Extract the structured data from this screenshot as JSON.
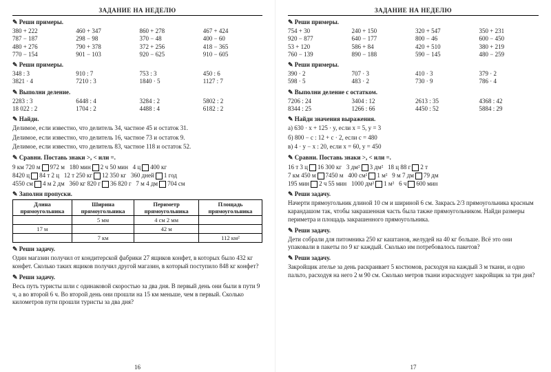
{
  "header": "ЗАДАНИЕ НА НЕДЕЛЮ",
  "left": {
    "page_no": "16",
    "s1_title": "Реши примеры.",
    "s1": {
      "c1": [
        "380 + 222",
        "787 − 187",
        "480 + 276",
        "770 − 154"
      ],
      "c2": [
        "460 + 347",
        "298 − 98",
        "790 + 378",
        "901 − 103"
      ],
      "c3": [
        "860 + 278",
        "370 − 48",
        "372 + 256",
        "920 − 625"
      ],
      "c4": [
        "467 + 424",
        "400 − 60",
        "418 − 365",
        "910 − 605"
      ]
    },
    "s2_title": "Реши примеры.",
    "s2": {
      "c1": [
        "348 : 3",
        "3821 · 4"
      ],
      "c2": [
        "910 : 7",
        "7210 : 3"
      ],
      "c3": [
        "753 : 3",
        "1840 · 5"
      ],
      "c4": [
        "450 : 6",
        "1127 : 7"
      ]
    },
    "s3_title": "Выполни деление.",
    "s3": {
      "c1": [
        "2283 : 3",
        "18 022 : 2"
      ],
      "c2": [
        "6448 : 4",
        "1704 : 2"
      ],
      "c3": [
        "3284 : 2",
        "4488 : 4"
      ],
      "c4": [
        "5802 : 2",
        "6182 : 2"
      ]
    },
    "s4_title": "Найди.",
    "s4_lines": [
      "Делимое, если известно, что делитель 34, частное 45 и остаток 31.",
      "Делимое, если известно, что делитель 16, частное 73 и остаток 9.",
      "Делимое, если известно, что делитель 83, частное 118 и остаток 52."
    ],
    "s5_title": "Сравни. Поставь знаки >, < или =.",
    "s5": {
      "r1": [
        "9 км 720 м",
        "972 м",
        "180 мин",
        "2 ч 50 мин",
        "4 ц",
        "400 кг"
      ],
      "r2": [
        "8420 ц",
        "84 т 2 ц",
        "12 т 250 кг",
        "12 350 кг",
        "360 дней",
        "1 год"
      ],
      "r3": [
        "4550 см",
        "4 м 2 дм",
        "360 кг 820 г",
        "36 820 г",
        "7 м 4 дм",
        "704 см"
      ]
    },
    "s6_title": "Заполни пропуски.",
    "table": {
      "headers": [
        "Длина прямоугольника",
        "Ширина прямоугольника",
        "Периметр прямоугольника",
        "Площадь прямоугольника"
      ],
      "rows": [
        [
          "",
          "5 мм",
          "4 см 2 мм",
          ""
        ],
        [
          "17 м",
          "",
          "42 м",
          ""
        ],
        [
          "",
          "7 км",
          "",
          "112 км²"
        ]
      ]
    },
    "s7_title": "Реши задачу.",
    "s7_text": "Один магазин получил от кондитерской фабрики 27 ящиков конфет, в которых было 432 кг конфет. Сколько таких ящиков получил другой магазин, в который поступило 848 кг конфет?",
    "s8_title": "Реши задачу.",
    "s8_text": "Весь путь туристы шли с одинаковой скоростью за два дня. В первый день они были в пути 9 ч, а во второй 6 ч. Во второй день они прошли на 15 км меньше, чем в первый. Сколько километров пути прошли туристы за два дня?"
  },
  "right": {
    "page_no": "17",
    "s1_title": "Реши примеры.",
    "s1": {
      "c1": [
        "754 + 30",
        "920 − 877",
        "53 + 120",
        "760 − 139"
      ],
      "c2": [
        "240 + 150",
        "640 − 177",
        "586 + 84",
        "890 − 188"
      ],
      "c3": [
        "320 + 547",
        "800 − 46",
        "420 + 510",
        "590 − 145"
      ],
      "c4": [
        "350 + 231",
        "600 − 450",
        "380 + 219",
        "480 − 259"
      ]
    },
    "s2_title": "Реши примеры.",
    "s2": {
      "c1": [
        "390 · 2",
        "598 · 5"
      ],
      "c2": [
        "707 · 3",
        "483 · 2"
      ],
      "c3": [
        "410 · 3",
        "730 · 9"
      ],
      "c4": [
        "379 · 2",
        "786 · 4"
      ]
    },
    "s3_title": "Выполни деление с остатком.",
    "s3": {
      "c1": [
        "7206 : 24",
        "8344 : 25"
      ],
      "c2": [
        "3404 : 12",
        "1266 : 66"
      ],
      "c3": [
        "2613 : 35",
        "4450 : 52"
      ],
      "c4": [
        "4368 : 42",
        "5884 : 29"
      ]
    },
    "s4_title": "Найди значения выражения.",
    "s4_lines": [
      "а) 630 · x + 125 · y, если x = 5, y = 3",
      "б) 800 − c : 12 + c · 2, если c = 480",
      "в) 4 · y − x : 20, если x = 60, y = 450"
    ],
    "s5_title": "Сравни. Поставь знаки >, < или =.",
    "s5": {
      "r1": [
        "16 т 3 ц",
        "16 300 кг",
        "3 дм²",
        "3 дм²",
        "18 ц 88 г",
        "2 т"
      ],
      "r2": [
        "7 км 450 м",
        "7450 м",
        "400 см²",
        "1 м²",
        "9 м 7 дм",
        "79 дм"
      ],
      "r3": [
        "195 мин",
        "2 ч 55 мин",
        "1000 дм²",
        "1 м²",
        "6 ч",
        "600 мин"
      ]
    },
    "s6_title": "Реши задачу.",
    "s6_text": "Начерти прямоугольник длиной 10 см и шириной 6 см. Закрась 2/3 прямоугольника красным карандашом так, чтобы закрашенная часть была также прямоугольником. Найди размеры периметра и площадь закрашенного прямоугольника.",
    "s7_title": "Реши задачу.",
    "s7_text": "Дети собрали для питомника 250 кг каштанов, желудей на 40 кг больше. Всё это они упаковали в пакеты по 9 кг каждый. Сколько им потребовалось пакетов?",
    "s8_title": "Реши задачу.",
    "s8_text": "Закройщик ателье за день раскраивает 5 костюмов, расходуя на каждый 3 м ткани, и одно пальто, расходуя на него 2 м 90 см. Сколько метров ткани израсходует закройщик за три дня?"
  }
}
